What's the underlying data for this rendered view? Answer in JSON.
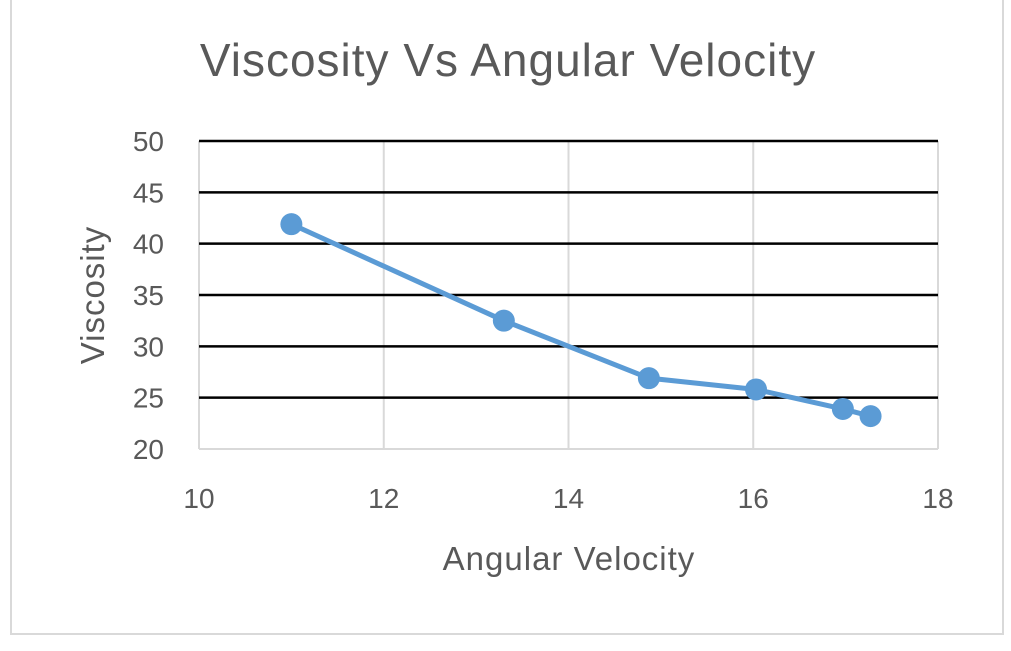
{
  "chart_data": {
    "type": "line",
    "title": "Viscosity Vs Angular Velocity",
    "xlabel": "Angular Velocity",
    "ylabel": "Viscosity",
    "xlim": [
      10,
      18
    ],
    "ylim": [
      20,
      50
    ],
    "x_ticks": [
      "10",
      "12",
      "14",
      "16",
      "18"
    ],
    "y_ticks": [
      "50",
      "45",
      "40",
      "35",
      "30",
      "25",
      "20"
    ],
    "grid": true,
    "legend": "none",
    "series": [
      {
        "x": [
          11.0,
          13.3,
          14.87,
          16.03,
          16.97,
          17.27
        ],
        "y": [
          41.9,
          32.5,
          26.9,
          25.8,
          23.9,
          23.2
        ],
        "color": "#5b9bd5",
        "marker": "circle"
      }
    ],
    "colors": {
      "major_gridline": "#000000",
      "vertical_gridline": "#d9d9d9",
      "axis": "#d9d9d9",
      "text": "#595959"
    }
  }
}
